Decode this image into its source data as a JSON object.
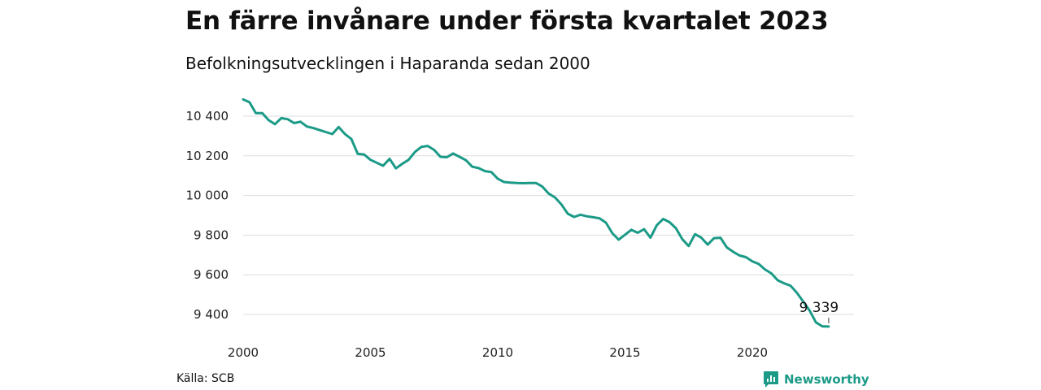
{
  "title": "En färre invånare under första kvartalet 2023",
  "subtitle": "Befolkningsutvecklingen i Haparanda sedan 2000",
  "source": "Källa: SCB",
  "brand": {
    "name": "Newsworthy",
    "color": "#1b9a87",
    "icon": "newsworthy-logo-icon"
  },
  "chart_data": {
    "type": "line",
    "title": "En färre invånare under första kvartalet 2023",
    "subtitle": "Befolkningsutvecklingen i Haparanda sedan 2000",
    "xlabel": "",
    "ylabel": "",
    "xlim": [
      2000,
      2023.25
    ],
    "ylim": [
      9300,
      10500
    ],
    "x_ticks": [
      2000,
      2005,
      2010,
      2015,
      2020
    ],
    "x_tick_labels": [
      "2000",
      "2005",
      "2010",
      "2015",
      "2020"
    ],
    "y_ticks": [
      9400,
      9600,
      9800,
      10000,
      10200,
      10400
    ],
    "y_tick_labels": [
      "9 400",
      "9 600",
      "9 800",
      "10 000",
      "10 200",
      "10 400"
    ],
    "grid": "horizontal",
    "line_color": "#1b9a87",
    "last_value_label": "9 339",
    "series": [
      {
        "x": [
          2000.0,
          2000.25,
          2000.5,
          2000.75,
          2001.0,
          2001.25,
          2001.5,
          2001.75,
          2002.0,
          2002.25,
          2002.5,
          2002.75,
          2003.0,
          2003.25,
          2003.5,
          2003.75,
          2004.0,
          2004.25,
          2004.5,
          2004.75,
          2005.0,
          2005.25,
          2005.5,
          2005.75,
          2006.0,
          2006.25,
          2006.5,
          2006.75,
          2007.0,
          2007.25,
          2007.5,
          2007.75,
          2008.0,
          2008.25,
          2008.5,
          2008.75,
          2009.0,
          2009.25,
          2009.5,
          2009.75,
          2010.0,
          2010.25,
          2010.5,
          2010.75,
          2011.0,
          2011.25,
          2011.5,
          2011.75,
          2012.0,
          2012.25,
          2012.5,
          2012.75,
          2013.0,
          2013.25,
          2013.5,
          2013.75,
          2014.0,
          2014.25,
          2014.5,
          2014.75,
          2015.0,
          2015.25,
          2015.5,
          2015.75,
          2016.0,
          2016.25,
          2016.5,
          2016.75,
          2017.0,
          2017.25,
          2017.5,
          2017.75,
          2018.0,
          2018.25,
          2018.5,
          2018.75,
          2019.0,
          2019.25,
          2019.5,
          2019.75,
          2020.0,
          2020.25,
          2020.5,
          2020.75,
          2021.0,
          2021.25,
          2021.5,
          2021.75,
          2022.0,
          2022.25,
          2022.5,
          2022.75,
          2023.0
        ],
        "values": [
          10485,
          10470,
          10415,
          10415,
          10380,
          10360,
          10390,
          10385,
          10365,
          10372,
          10348,
          10340,
          10330,
          10320,
          10310,
          10345,
          10310,
          10285,
          10210,
          10207,
          10180,
          10165,
          10150,
          10185,
          10137,
          10160,
          10180,
          10220,
          10245,
          10250,
          10230,
          10195,
          10193,
          10212,
          10195,
          10178,
          10145,
          10138,
          10123,
          10118,
          10085,
          10068,
          10065,
          10063,
          10062,
          10063,
          10063,
          10045,
          10010,
          9990,
          9955,
          9908,
          9892,
          9903,
          9895,
          9890,
          9885,
          9863,
          9810,
          9777,
          9802,
          9827,
          9812,
          9830,
          9787,
          9850,
          9882,
          9865,
          9835,
          9780,
          9745,
          9805,
          9787,
          9752,
          9785,
          9787,
          9738,
          9716,
          9697,
          9689,
          9668,
          9655,
          9627,
          9607,
          9572,
          9557,
          9545,
          9510,
          9465,
          9420,
          9360,
          9340,
          9339
        ]
      }
    ]
  }
}
